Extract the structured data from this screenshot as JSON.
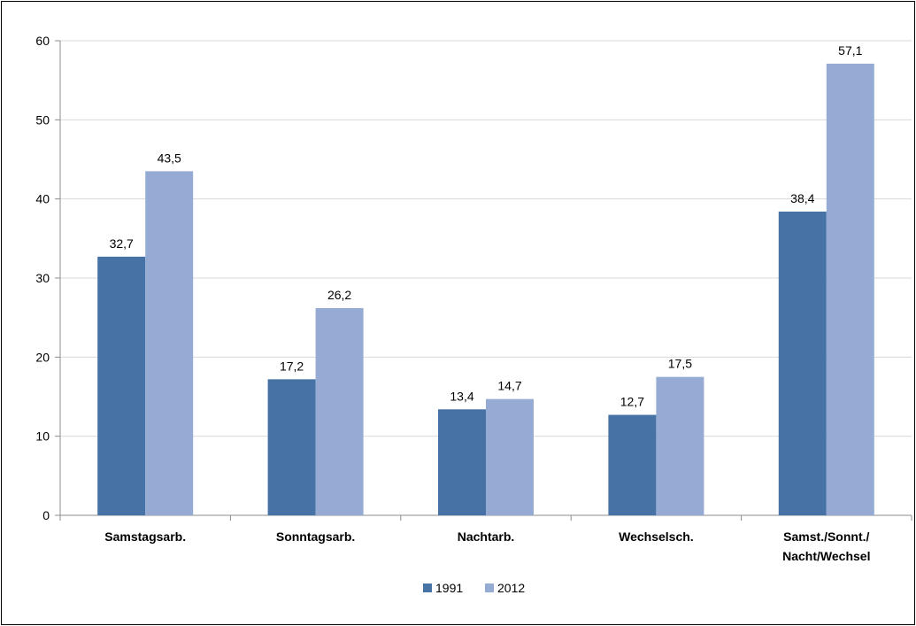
{
  "chart_data": {
    "type": "bar",
    "categories": [
      [
        "Samstagsarb."
      ],
      [
        "Sonntagsarb."
      ],
      [
        "Nachtarb."
      ],
      [
        "Wechselsch."
      ],
      [
        "Samst./Sonnt./",
        "Nacht/Wechsel"
      ]
    ],
    "series": [
      {
        "name": "1991",
        "values": [
          32.7,
          17.2,
          13.4,
          12.7,
          38.4
        ],
        "labels": [
          "32,7",
          "17,2",
          "13,4",
          "12,7",
          "38,4"
        ],
        "color": "#4672a6"
      },
      {
        "name": "2012",
        "values": [
          43.5,
          26.2,
          14.7,
          17.5,
          57.1
        ],
        "labels": [
          "43,5",
          "26,2",
          "14,7",
          "17,5",
          "57,1"
        ],
        "color": "#95abd3"
      }
    ],
    "ylim": [
      0,
      60
    ],
    "yticks": [
      "0",
      "10",
      "20",
      "30",
      "40",
      "50",
      "60"
    ],
    "grid": true,
    "legend": "bottom",
    "title": "",
    "xlabel": "",
    "ylabel": ""
  },
  "colors": {
    "grid": "#d9d9d9",
    "axis": "#8c8c8c"
  }
}
